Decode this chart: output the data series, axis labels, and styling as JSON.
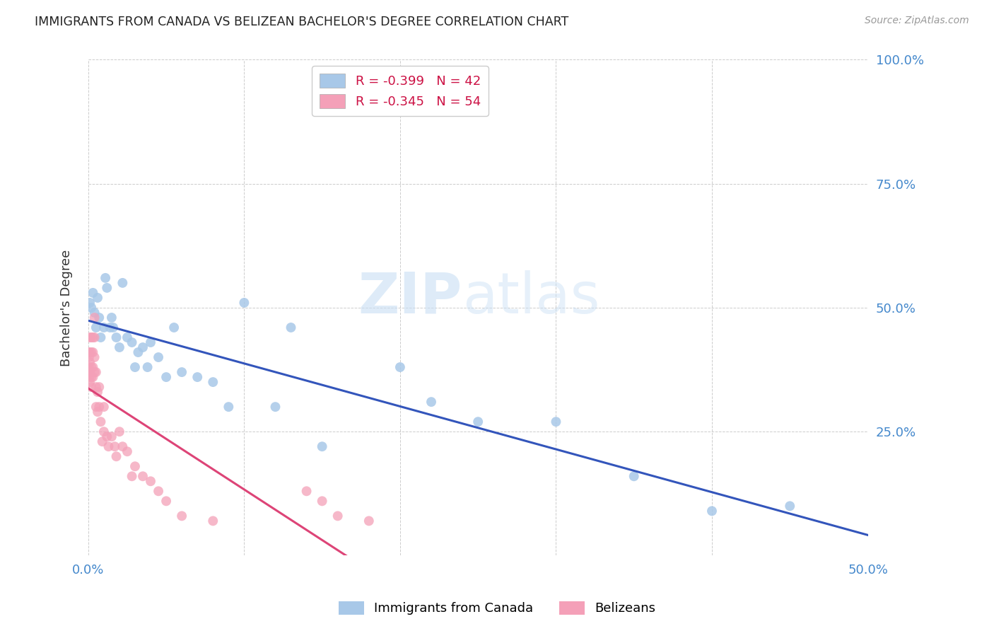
{
  "title": "IMMIGRANTS FROM CANADA VS BELIZEAN BACHELOR'S DEGREE CORRELATION CHART",
  "source": "Source: ZipAtlas.com",
  "ylabel": "Bachelor's Degree",
  "xlim": [
    0.0,
    0.5
  ],
  "ylim": [
    0.0,
    1.0
  ],
  "legend_label1": "Immigrants from Canada",
  "legend_label2": "Belizeans",
  "canada_color": "#a8c8e8",
  "belizean_color": "#f4a0b8",
  "canada_line_color": "#3355bb",
  "belizean_line_color": "#dd4477",
  "canada_R": -0.399,
  "canada_N": 42,
  "belizean_R": -0.345,
  "belizean_N": 54,
  "canada_x": [
    0.001,
    0.002,
    0.003,
    0.004,
    0.005,
    0.006,
    0.007,
    0.008,
    0.01,
    0.011,
    0.012,
    0.014,
    0.015,
    0.016,
    0.018,
    0.02,
    0.022,
    0.025,
    0.028,
    0.03,
    0.032,
    0.035,
    0.038,
    0.04,
    0.045,
    0.05,
    0.055,
    0.06,
    0.07,
    0.08,
    0.09,
    0.1,
    0.12,
    0.13,
    0.15,
    0.2,
    0.22,
    0.25,
    0.3,
    0.35,
    0.4,
    0.45
  ],
  "canada_y": [
    0.51,
    0.5,
    0.53,
    0.49,
    0.46,
    0.52,
    0.48,
    0.44,
    0.46,
    0.56,
    0.54,
    0.46,
    0.48,
    0.46,
    0.44,
    0.42,
    0.55,
    0.44,
    0.43,
    0.38,
    0.41,
    0.42,
    0.38,
    0.43,
    0.4,
    0.36,
    0.46,
    0.37,
    0.36,
    0.35,
    0.3,
    0.51,
    0.3,
    0.46,
    0.22,
    0.38,
    0.31,
    0.27,
    0.27,
    0.16,
    0.09,
    0.1
  ],
  "belizean_x": [
    0.0002,
    0.0003,
    0.0005,
    0.0006,
    0.0008,
    0.001,
    0.001,
    0.001,
    0.001,
    0.001,
    0.002,
    0.002,
    0.002,
    0.002,
    0.002,
    0.003,
    0.003,
    0.003,
    0.003,
    0.004,
    0.004,
    0.004,
    0.004,
    0.005,
    0.005,
    0.005,
    0.006,
    0.006,
    0.007,
    0.007,
    0.008,
    0.009,
    0.01,
    0.01,
    0.012,
    0.013,
    0.015,
    0.017,
    0.018,
    0.02,
    0.022,
    0.025,
    0.028,
    0.03,
    0.035,
    0.04,
    0.045,
    0.05,
    0.06,
    0.08,
    0.14,
    0.15,
    0.16,
    0.18
  ],
  "belizean_y": [
    0.41,
    0.38,
    0.4,
    0.36,
    0.37,
    0.44,
    0.41,
    0.39,
    0.37,
    0.35,
    0.44,
    0.41,
    0.38,
    0.36,
    0.34,
    0.44,
    0.41,
    0.38,
    0.36,
    0.48,
    0.44,
    0.4,
    0.37,
    0.37,
    0.34,
    0.3,
    0.33,
    0.29,
    0.34,
    0.3,
    0.27,
    0.23,
    0.3,
    0.25,
    0.24,
    0.22,
    0.24,
    0.22,
    0.2,
    0.25,
    0.22,
    0.21,
    0.16,
    0.18,
    0.16,
    0.15,
    0.13,
    0.11,
    0.08,
    0.07,
    0.13,
    0.11,
    0.08,
    0.07
  ]
}
